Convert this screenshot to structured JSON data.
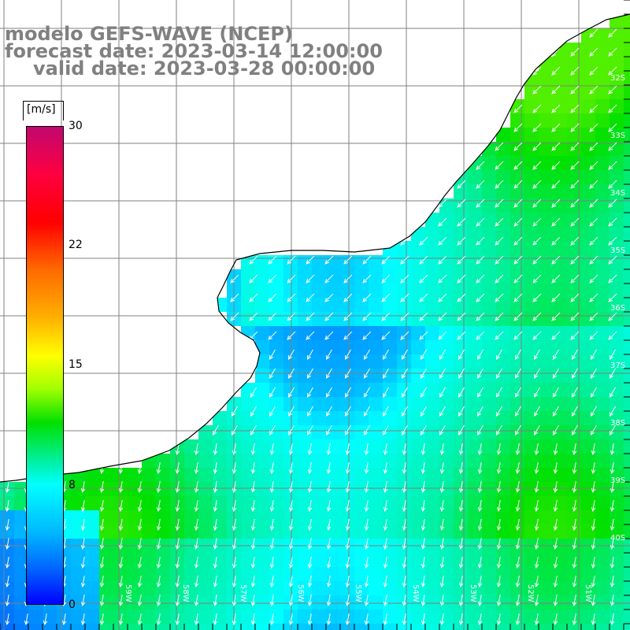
{
  "title": {
    "model": "modelo GEFS-WAVE (NCEP)",
    "forecast": "forecast date: 2023-03-14 12:00:00",
    "valid": "valid date: 2023-03-28 00:00:00"
  },
  "colorbar": {
    "unit": "[m/s]",
    "ticks": [
      "30",
      "22",
      "15",
      "8",
      "0"
    ],
    "tick_values": [
      30,
      22,
      15,
      8,
      0
    ],
    "range": [
      0,
      30
    ],
    "colors": [
      "#c0086f",
      "#ff0000",
      "#ff8000",
      "#ffff00",
      "#00e000",
      "#00ffff",
      "#0080ff",
      "#0000ff"
    ]
  },
  "map": {
    "land_color": "#ffffff",
    "coast_color": "#000000",
    "grid_color": "#808080",
    "arrow_color": "#ffffff",
    "lat_labels": [
      "32S",
      "33S",
      "34S",
      "35S",
      "36S",
      "37S",
      "38S",
      "39S",
      "40S"
    ],
    "lon_labels": [
      "59W",
      "58W",
      "57W",
      "56W",
      "55W",
      "54W",
      "53W",
      "52W",
      "51W"
    ]
  }
}
